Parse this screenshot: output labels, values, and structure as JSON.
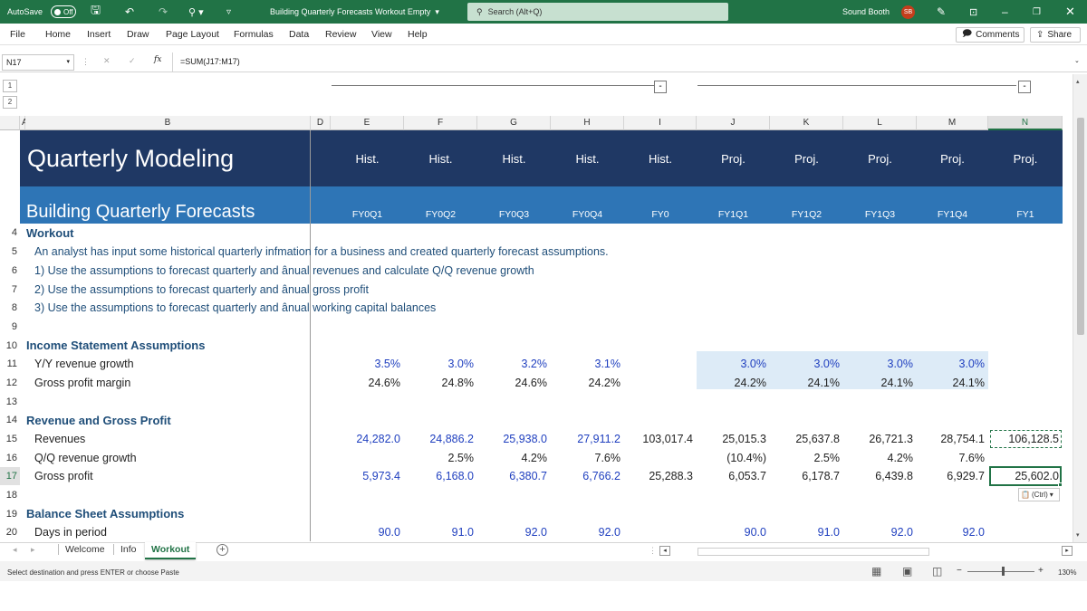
{
  "titlebar": {
    "autosave_label": "AutoSave",
    "autosave_state": "Off",
    "doc_title": "Building Quarterly Forecasts Workout Empty",
    "search_placeholder": "Search (Alt+Q)",
    "user_name": "Sound Booth",
    "user_initials": "SB"
  },
  "menu": [
    "File",
    "Home",
    "Insert",
    "Draw",
    "Page Layout",
    "Formulas",
    "Data",
    "Review",
    "View",
    "Help"
  ],
  "comments_label": "Comments",
  "share_label": "Share",
  "formula": {
    "cell_ref": "N17",
    "fx": "fx",
    "content": "=SUM(J17:M17)"
  },
  "outline_levels": [
    "1",
    "2"
  ],
  "columns": [
    "A",
    "B",
    "D",
    "E",
    "F",
    "G",
    "H",
    "I",
    "J",
    "K",
    "L",
    "M",
    "N"
  ],
  "sheet": {
    "title": "Quarterly Modeling",
    "subtitle": "Building Quarterly Forecasts",
    "hist_proj": [
      "Hist.",
      "Hist.",
      "Hist.",
      "Hist.",
      "Hist.",
      "Proj.",
      "Proj.",
      "Proj.",
      "Proj.",
      "Proj."
    ],
    "periods": [
      "FY0Q1",
      "FY0Q2",
      "FY0Q3",
      "FY0Q4",
      "FY0",
      "FY1Q1",
      "FY1Q2",
      "FY1Q3",
      "FY1Q4",
      "FY1"
    ],
    "workout": "Workout",
    "intro": "An analyst has input some historical quarterly infmation for a business and created quarterly forecast assumptions.",
    "task1": "1) Use the assumptions to forecast quarterly and ânual revenues and calculate Q/Q revenue growth",
    "task2": "2) Use the assumptions to forecast quarterly and ânual gross profit",
    "task3": "3) Use the assumptions to forecast quarterly and ânual working capital balances",
    "is_assumptions": "Income Statement Assumptions",
    "yoy_label": "Y/Y revenue growth",
    "yoy": [
      "3.5%",
      "3.0%",
      "3.2%",
      "3.1%",
      "",
      "3.0%",
      "3.0%",
      "3.0%",
      "3.0%",
      ""
    ],
    "gpm_label": "Gross profit margin",
    "gpm": [
      "24.6%",
      "24.8%",
      "24.6%",
      "24.2%",
      "",
      "24.2%",
      "24.1%",
      "24.1%",
      "24.1%",
      ""
    ],
    "rev_gp": "Revenue and Gross Profit",
    "rev_label": "Revenues",
    "rev": [
      "24,282.0",
      "24,886.2",
      "25,938.0",
      "27,911.2",
      "103,017.4",
      "25,015.3",
      "25,637.8",
      "26,721.3",
      "28,754.1",
      "106,128.5"
    ],
    "qq_label": "Q/Q revenue growth",
    "qq": [
      "",
      "2.5%",
      "4.2%",
      "7.6%",
      "",
      "(10.4%)",
      "2.5%",
      "4.2%",
      "7.6%",
      ""
    ],
    "gp_label": "Gross profit",
    "gp": [
      "5,973.4",
      "6,168.0",
      "6,380.7",
      "6,766.2",
      "25,288.3",
      "6,053.7",
      "6,178.7",
      "6,439.8",
      "6,929.7",
      "25,602.0"
    ],
    "paste_tag": "(Ctrl)",
    "bs_assumptions": "Balance Sheet Assumptions",
    "days_label": "Days in period",
    "days": [
      "90.0",
      "91.0",
      "92.0",
      "92.0",
      "",
      "90.0",
      "91.0",
      "92.0",
      "92.0",
      ""
    ]
  },
  "tabs": [
    "Welcome",
    "Info",
    "Workout"
  ],
  "active_tab": "Workout",
  "status": {
    "message": "Select destination and press ENTER or choose Paste",
    "zoom": "130%"
  },
  "colors": {
    "excel_green": "#217346",
    "title_navy": "#1f3864",
    "subtitle_blue": "#2e75b6",
    "input_blue": "#1f3fbf",
    "heading_teal": "#1f4e79",
    "proj_fill": "#ddebf7"
  }
}
